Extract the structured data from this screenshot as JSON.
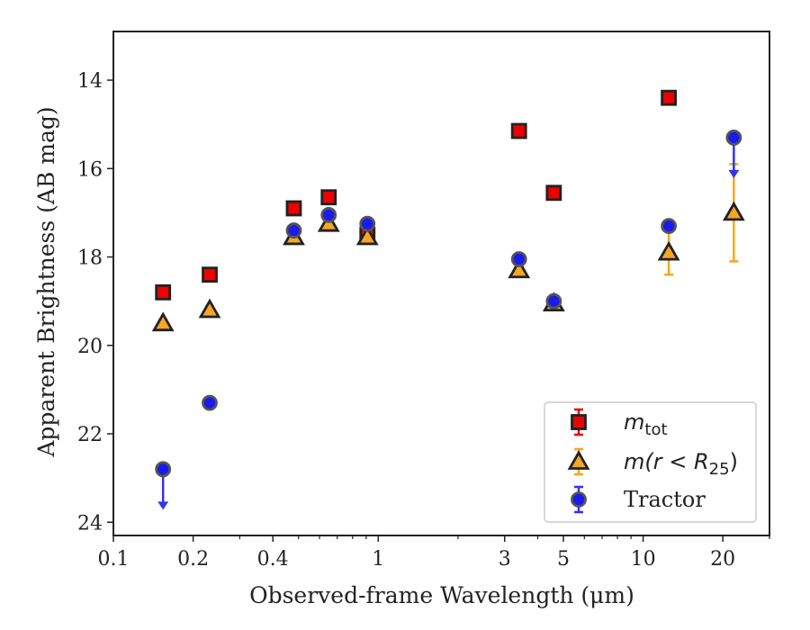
{
  "chart_data": {
    "type": "scatter",
    "xlabel": "Observed-frame Wavelength (μm)",
    "ylabel": "Apparent Brightness (AB mag)",
    "xscale": "log",
    "xlim": [
      0.1,
      30
    ],
    "ylim": [
      24.3,
      12.9
    ],
    "y_inverted": true,
    "x_ticks": [
      {
        "value": 0.1,
        "label": "0.1"
      },
      {
        "value": 0.2,
        "label": "0.2"
      },
      {
        "value": 0.4,
        "label": "0.4"
      },
      {
        "value": 1,
        "label": "1"
      },
      {
        "value": 3,
        "label": "3"
      },
      {
        "value": 5,
        "label": "5"
      },
      {
        "value": 10,
        "label": "10"
      },
      {
        "value": 20,
        "label": "20"
      }
    ],
    "y_ticks": [
      {
        "value": 14,
        "label": "14"
      },
      {
        "value": 16,
        "label": "16"
      },
      {
        "value": 18,
        "label": "18"
      },
      {
        "value": 20,
        "label": "20"
      },
      {
        "value": 22,
        "label": "22"
      },
      {
        "value": 24,
        "label": "24"
      }
    ],
    "grid": false,
    "legend_position": "bottom-right",
    "series": [
      {
        "name": "m_tot",
        "marker": "square",
        "face_color": "#ee0000",
        "error_color": "#ee0000",
        "points": [
          {
            "x": 0.154,
            "y": 18.8
          },
          {
            "x": 0.231,
            "y": 18.4
          },
          {
            "x": 0.48,
            "y": 16.9
          },
          {
            "x": 0.65,
            "y": 16.65
          },
          {
            "x": 0.91,
            "y": 17.5
          },
          {
            "x": 3.4,
            "y": 15.15
          },
          {
            "x": 4.6,
            "y": 16.55
          },
          {
            "x": 12.5,
            "y": 14.4
          }
        ]
      },
      {
        "name": "m(r < R25)",
        "marker": "triangle",
        "face_color": "#f5a623",
        "error_color": "#f5a623",
        "points": [
          {
            "x": 0.154,
            "y": 19.5
          },
          {
            "x": 0.231,
            "y": 19.2
          },
          {
            "x": 0.48,
            "y": 17.55
          },
          {
            "x": 0.65,
            "y": 17.25
          },
          {
            "x": 0.91,
            "y": 17.55
          },
          {
            "x": 3.4,
            "y": 18.3
          },
          {
            "x": 4.6,
            "y": 19.05
          },
          {
            "x": 12.5,
            "y": 17.9,
            "err_low": 0.5,
            "err_high": 0.5
          },
          {
            "x": 22,
            "y": 17.0,
            "err_low": 1.1,
            "err_high": 1.1
          }
        ]
      },
      {
        "name": "Tractor",
        "marker": "circle",
        "face_color": "#1a1aee",
        "error_color": "#3333ee",
        "points": [
          {
            "x": 0.154,
            "y": 22.8,
            "upper_limit": true
          },
          {
            "x": 0.231,
            "y": 21.3
          },
          {
            "x": 0.48,
            "y": 17.4
          },
          {
            "x": 0.65,
            "y": 17.05
          },
          {
            "x": 0.91,
            "y": 17.25
          },
          {
            "x": 3.4,
            "y": 18.05
          },
          {
            "x": 4.6,
            "y": 19.0
          },
          {
            "x": 12.5,
            "y": 17.3
          },
          {
            "x": 22,
            "y": 15.3,
            "upper_limit": true
          }
        ]
      }
    ],
    "legend": [
      {
        "label_base": "m",
        "label_sub": "tot",
        "marker": "square"
      },
      {
        "label_main": "m(r < R",
        "label_sub": "25",
        "label_tail": ")",
        "marker": "triangle"
      },
      {
        "label_plain": "Tractor",
        "marker": "circle"
      }
    ]
  }
}
